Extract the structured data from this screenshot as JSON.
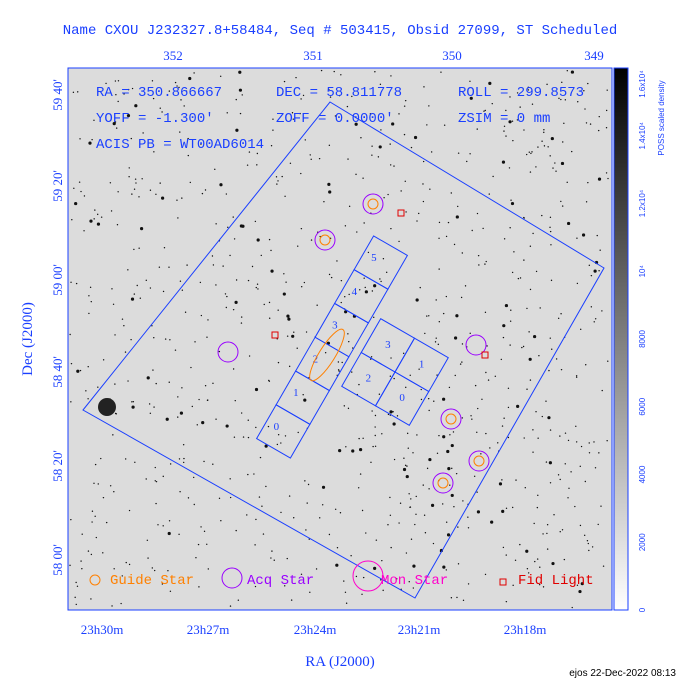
{
  "title": "Name CXOU J232327.8+58484, Seq # 503415, Obsid 27099, ST Scheduled",
  "top_labels": [
    "352",
    "351",
    "350",
    "349"
  ],
  "left_labels": [
    "59 40'",
    "59 20'",
    "59 00'",
    "58 40'",
    "58 20'",
    "58 00'"
  ],
  "bottom_labels": [
    "23h30m",
    "23h27m",
    "23h24m",
    "23h21m",
    "23h18m"
  ],
  "x_axis_title": "RA (J2000)",
  "y_axis_title": "Dec (J2000)",
  "info": [
    "RA = 350.866667",
    "DEC = 58.811778",
    "ROLL = 299.8573",
    "YOFF =  -1.300'",
    "ZOFF =   0.0000'",
    "ZSIM = 0 mm",
    "ACIS PB = WT00AD6014"
  ],
  "s_chips": [
    "0",
    "1",
    "2",
    "3",
    "4",
    "5"
  ],
  "i_chips": [
    "3",
    "1",
    "2",
    "0"
  ],
  "legend": [
    "Guide Star",
    "Acq Star",
    "Mon Star",
    "Fid Light"
  ],
  "colorbar_labels": [
    "0",
    "2000",
    "4000",
    "6000",
    "8000",
    "10⁴",
    "1.2x10⁴",
    "1.4x10⁴",
    "1.6x10⁴"
  ],
  "colorbar_title": "POSS scaled density",
  "footer": "ejos 22-Dec-2022 08:13"
}
